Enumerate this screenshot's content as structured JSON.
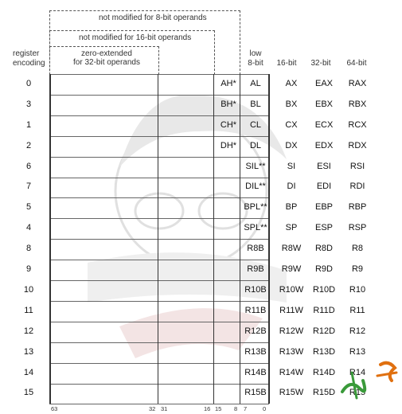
{
  "annotations": {
    "not_mod_8": "not modified for 8-bit operands",
    "not_mod_16": "not modified for 16-bit operands",
    "zero_ext_line1": "zero-extended",
    "zero_ext_line2": "for 32-bit operands"
  },
  "headers": {
    "reg_enc_line1": "register",
    "reg_enc_line2": "encoding",
    "low8_line1": "low",
    "low8_line2": "8-bit",
    "col16": "16-bit",
    "col32": "32-bit",
    "col64": "64-bit"
  },
  "bit_positions": [
    "63",
    "32",
    "31",
    "16",
    "15",
    "8",
    "7",
    "0"
  ],
  "rows": [
    {
      "enc": "0",
      "high8": "AH*",
      "low8": "AL",
      "r16": "AX",
      "r32": "EAX",
      "r64": "RAX"
    },
    {
      "enc": "3",
      "high8": "BH*",
      "low8": "BL",
      "r16": "BX",
      "r32": "EBX",
      "r64": "RBX"
    },
    {
      "enc": "1",
      "high8": "CH*",
      "low8": "CL",
      "r16": "CX",
      "r32": "ECX",
      "r64": "RCX"
    },
    {
      "enc": "2",
      "high8": "DH*",
      "low8": "DL",
      "r16": "DX",
      "r32": "EDX",
      "r64": "RDX"
    },
    {
      "enc": "6",
      "high8": "",
      "low8": "SIL**",
      "r16": "SI",
      "r32": "ESI",
      "r64": "RSI"
    },
    {
      "enc": "7",
      "high8": "",
      "low8": "DIL**",
      "r16": "DI",
      "r32": "EDI",
      "r64": "RDI"
    },
    {
      "enc": "5",
      "high8": "",
      "low8": "BPL**",
      "r16": "BP",
      "r32": "EBP",
      "r64": "RBP"
    },
    {
      "enc": "4",
      "high8": "",
      "low8": "SPL**",
      "r16": "SP",
      "r32": "ESP",
      "r64": "RSP"
    },
    {
      "enc": "8",
      "high8": "",
      "low8": "R8B",
      "r16": "R8W",
      "r32": "R8D",
      "r64": "R8"
    },
    {
      "enc": "9",
      "high8": "",
      "low8": "R9B",
      "r16": "R9W",
      "r32": "R9D",
      "r64": "R9"
    },
    {
      "enc": "10",
      "high8": "",
      "low8": "R10B",
      "r16": "R10W",
      "r32": "R10D",
      "r64": "R10"
    },
    {
      "enc": "11",
      "high8": "",
      "low8": "R11B",
      "r16": "R11W",
      "r32": "R11D",
      "r64": "R11"
    },
    {
      "enc": "12",
      "high8": "",
      "low8": "R12B",
      "r16": "R12W",
      "r32": "R12D",
      "r64": "R12"
    },
    {
      "enc": "13",
      "high8": "",
      "low8": "R13B",
      "r16": "R13W",
      "r32": "R13D",
      "r64": "R13"
    },
    {
      "enc": "14",
      "high8": "",
      "low8": "R14B",
      "r16": "R14W",
      "r32": "R14D",
      "r64": "R14"
    },
    {
      "enc": "15",
      "high8": "",
      "low8": "R15B",
      "r16": "R15W",
      "r32": "R15D",
      "r64": "R15"
    }
  ],
  "colors": {
    "line": "#333333",
    "watermark_green": "#3a9a3a",
    "watermark_orange": "#e07010"
  }
}
